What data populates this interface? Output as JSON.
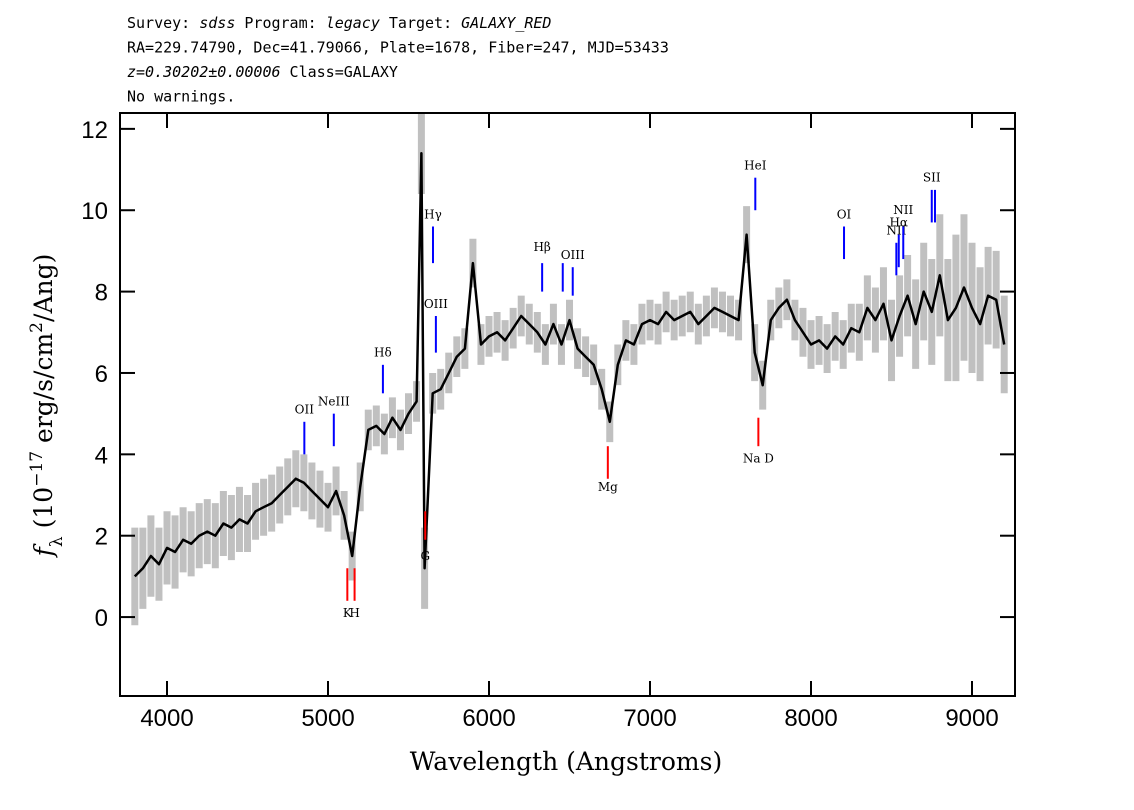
{
  "chart_data": {
    "type": "line",
    "header": [
      [
        {
          "text": "Survey: "
        },
        {
          "text": "sdss",
          "style": "italic"
        },
        {
          "text": " Program: "
        },
        {
          "text": "legacy",
          "style": "italic"
        },
        {
          "text": " Target: "
        },
        {
          "text": "GALAXY_RED",
          "style": "italic"
        }
      ],
      [
        {
          "text": "RA=229.74790, Dec=41.79066, Plate=1678, Fiber=247, MJD=53433"
        }
      ],
      [
        {
          "text": "z=0.30202±0.00006",
          "style": "italic"
        },
        {
          "text": " Class=GALAXY"
        }
      ],
      [
        {
          "text": "No warnings."
        }
      ]
    ],
    "xlabel": "Wavelength (Angstroms)",
    "ylabel": [
      {
        "text": "f",
        "style": "italic"
      },
      {
        "text": "λ",
        "shift": "sub"
      },
      {
        "text": " (10"
      },
      {
        "text": "−17",
        "shift": "super"
      },
      {
        "text": " erg/s/cm"
      },
      {
        "text": "2",
        "shift": "super"
      },
      {
        "text": "/Ang)"
      }
    ],
    "xlim": [
      3708,
      9267
    ],
    "ylim": [
      -1.94,
      12.39
    ],
    "xticks": [
      4000,
      5000,
      6000,
      7000,
      8000,
      9000
    ],
    "yticks": [
      0,
      2,
      4,
      6,
      8,
      10,
      12
    ],
    "x": [
      3800,
      3850,
      3900,
      3950,
      4000,
      4050,
      4100,
      4150,
      4200,
      4250,
      4300,
      4350,
      4400,
      4450,
      4500,
      4550,
      4600,
      4650,
      4700,
      4750,
      4800,
      4850,
      4900,
      4950,
      5000,
      5050,
      5100,
      5150,
      5200,
      5250,
      5300,
      5350,
      5400,
      5450,
      5500,
      5550,
      5580,
      5600,
      5650,
      5700,
      5750,
      5800,
      5850,
      5900,
      5950,
      6000,
      6050,
      6100,
      6150,
      6200,
      6250,
      6300,
      6350,
      6400,
      6450,
      6500,
      6550,
      6600,
      6650,
      6700,
      6750,
      6800,
      6850,
      6900,
      6950,
      7000,
      7050,
      7100,
      7150,
      7200,
      7250,
      7300,
      7350,
      7400,
      7450,
      7500,
      7550,
      7600,
      7650,
      7700,
      7750,
      7800,
      7850,
      7900,
      7950,
      8000,
      8050,
      8100,
      8150,
      8200,
      8250,
      8300,
      8350,
      8400,
      8450,
      8500,
      8550,
      8600,
      8650,
      8700,
      8750,
      8800,
      8850,
      8900,
      8950,
      9000,
      9050,
      9100,
      9150,
      9200
    ],
    "series": [
      {
        "color": "#000000",
        "band_color": "#c0c0c0",
        "values": [
          1.0,
          1.2,
          1.5,
          1.3,
          1.7,
          1.6,
          1.9,
          1.8,
          2.0,
          2.1,
          2.0,
          2.3,
          2.2,
          2.4,
          2.3,
          2.6,
          2.7,
          2.8,
          3.0,
          3.2,
          3.4,
          3.3,
          3.1,
          2.9,
          2.7,
          3.1,
          2.5,
          1.5,
          3.2,
          4.6,
          4.7,
          4.5,
          4.9,
          4.6,
          5.0,
          5.3,
          11.4,
          1.2,
          5.5,
          5.6,
          6.0,
          6.4,
          6.6,
          8.7,
          6.7,
          6.9,
          7.0,
          6.8,
          7.1,
          7.4,
          7.2,
          7.0,
          6.7,
          7.2,
          6.7,
          7.3,
          6.6,
          6.4,
          6.2,
          5.6,
          4.8,
          6.2,
          6.8,
          6.7,
          7.2,
          7.3,
          7.2,
          7.5,
          7.3,
          7.4,
          7.5,
          7.2,
          7.4,
          7.6,
          7.5,
          7.4,
          7.3,
          9.4,
          6.5,
          5.7,
          7.3,
          7.6,
          7.8,
          7.3,
          7.0,
          6.7,
          6.8,
          6.6,
          6.9,
          6.7,
          7.1,
          7.0,
          7.6,
          7.3,
          7.7,
          6.8,
          7.4,
          7.9,
          7.2,
          8.0,
          7.5,
          8.4,
          7.3,
          7.6,
          8.1,
          7.6,
          7.2,
          7.9,
          7.8,
          6.7
        ],
        "errors": [
          1.2,
          1.0,
          1.0,
          0.9,
          0.9,
          0.9,
          0.8,
          0.8,
          0.8,
          0.8,
          0.8,
          0.8,
          0.8,
          0.8,
          0.7,
          0.7,
          0.7,
          0.7,
          0.7,
          0.7,
          0.7,
          0.7,
          0.7,
          0.7,
          0.6,
          0.6,
          0.6,
          0.6,
          0.6,
          0.5,
          0.5,
          0.5,
          0.5,
          0.5,
          0.5,
          0.5,
          1.0,
          1.0,
          0.5,
          0.5,
          0.5,
          0.5,
          0.5,
          0.6,
          0.5,
          0.5,
          0.5,
          0.5,
          0.5,
          0.5,
          0.5,
          0.5,
          0.5,
          0.5,
          0.5,
          0.5,
          0.5,
          0.5,
          0.5,
          0.5,
          0.5,
          0.5,
          0.5,
          0.5,
          0.5,
          0.5,
          0.5,
          0.5,
          0.5,
          0.5,
          0.5,
          0.5,
          0.5,
          0.5,
          0.5,
          0.5,
          0.5,
          0.7,
          0.7,
          0.6,
          0.5,
          0.5,
          0.5,
          0.5,
          0.6,
          0.6,
          0.6,
          0.6,
          0.6,
          0.6,
          0.6,
          0.7,
          0.8,
          0.8,
          0.9,
          1.0,
          1.0,
          1.0,
          1.1,
          1.2,
          1.3,
          1.5,
          1.5,
          1.8,
          1.8,
          1.6,
          1.4,
          1.2,
          1.2,
          1.2
        ]
      }
    ],
    "lines": [
      {
        "label": "OII",
        "x": 4853,
        "y": [
          4.0,
          4.8
        ],
        "label_y": 5.1,
        "color": "#0000ff"
      },
      {
        "label": "NeIII",
        "x": 5036,
        "y": [
          4.2,
          5.0
        ],
        "label_y": 5.3,
        "color": "#0000ff"
      },
      {
        "label": "Hδ",
        "x": 5341,
        "y": [
          5.5,
          6.2
        ],
        "label_y": 6.5,
        "color": "#0000ff"
      },
      {
        "label": "Hγ",
        "x": 5652,
        "y": [
          8.7,
          9.6
        ],
        "label_y": 9.9,
        "color": "#0000ff"
      },
      {
        "label": "OIII",
        "x": 5670,
        "y": [
          6.5,
          7.4
        ],
        "label_y": 7.7,
        "color": "#0000ff"
      },
      {
        "label": "Hβ",
        "x": 6330,
        "y": [
          8.0,
          8.7
        ],
        "label_y": 9.1,
        "color": "#0000ff"
      },
      {
        "label": null,
        "x": 6458,
        "y": [
          8.0,
          8.7
        ],
        "label_y": null,
        "color": "#0000ff"
      },
      {
        "label": "OIII",
        "x": 6520,
        "y": [
          7.9,
          8.6
        ],
        "label_y": 8.9,
        "color": "#0000ff"
      },
      {
        "label": "HeI",
        "x": 7654,
        "y": [
          10.0,
          10.8
        ],
        "label_y": 11.1,
        "color": "#0000ff"
      },
      {
        "label": "OI",
        "x": 8205,
        "y": [
          8.8,
          9.6
        ],
        "label_y": 9.9,
        "color": "#0000ff"
      },
      {
        "label": "NII",
        "x": 8530,
        "y": [
          8.4,
          9.2
        ],
        "label_y": 9.5,
        "color": "#0000ff"
      },
      {
        "label": "Hα",
        "x": 8545,
        "y": [
          8.6,
          9.4
        ],
        "label_y": 9.7,
        "color": "#0000ff"
      },
      {
        "label": "NII",
        "x": 8573,
        "y": [
          8.8,
          9.6
        ],
        "label_y": 10.0,
        "color": "#0000ff"
      },
      {
        "label": "SII",
        "x": 8750,
        "y": [
          9.7,
          10.5
        ],
        "label_y": 10.8,
        "color": "#0000ff"
      },
      {
        "label": null,
        "x": 8770,
        "y": [
          9.7,
          10.5
        ],
        "label_y": null,
        "color": "#0000ff"
      },
      {
        "label": "K",
        "x": 5120,
        "y": [
          0.4,
          1.2
        ],
        "label_y": 0.1,
        "color": "#ff0000"
      },
      {
        "label": "H",
        "x": 5165,
        "y": [
          0.4,
          1.2
        ],
        "label_y": 0.1,
        "color": "#ff0000"
      },
      {
        "label": "G",
        "x": 5604,
        "y": [
          1.9,
          2.6
        ],
        "label_y": 1.5,
        "color": "#ff0000"
      },
      {
        "label": "Mg",
        "x": 6738,
        "y": [
          3.4,
          4.2
        ],
        "label_y": 3.2,
        "color": "#ff0000"
      },
      {
        "label": "Na D",
        "x": 7673,
        "y": [
          4.2,
          4.9
        ],
        "label_y": 3.9,
        "color": "#ff0000"
      }
    ]
  }
}
